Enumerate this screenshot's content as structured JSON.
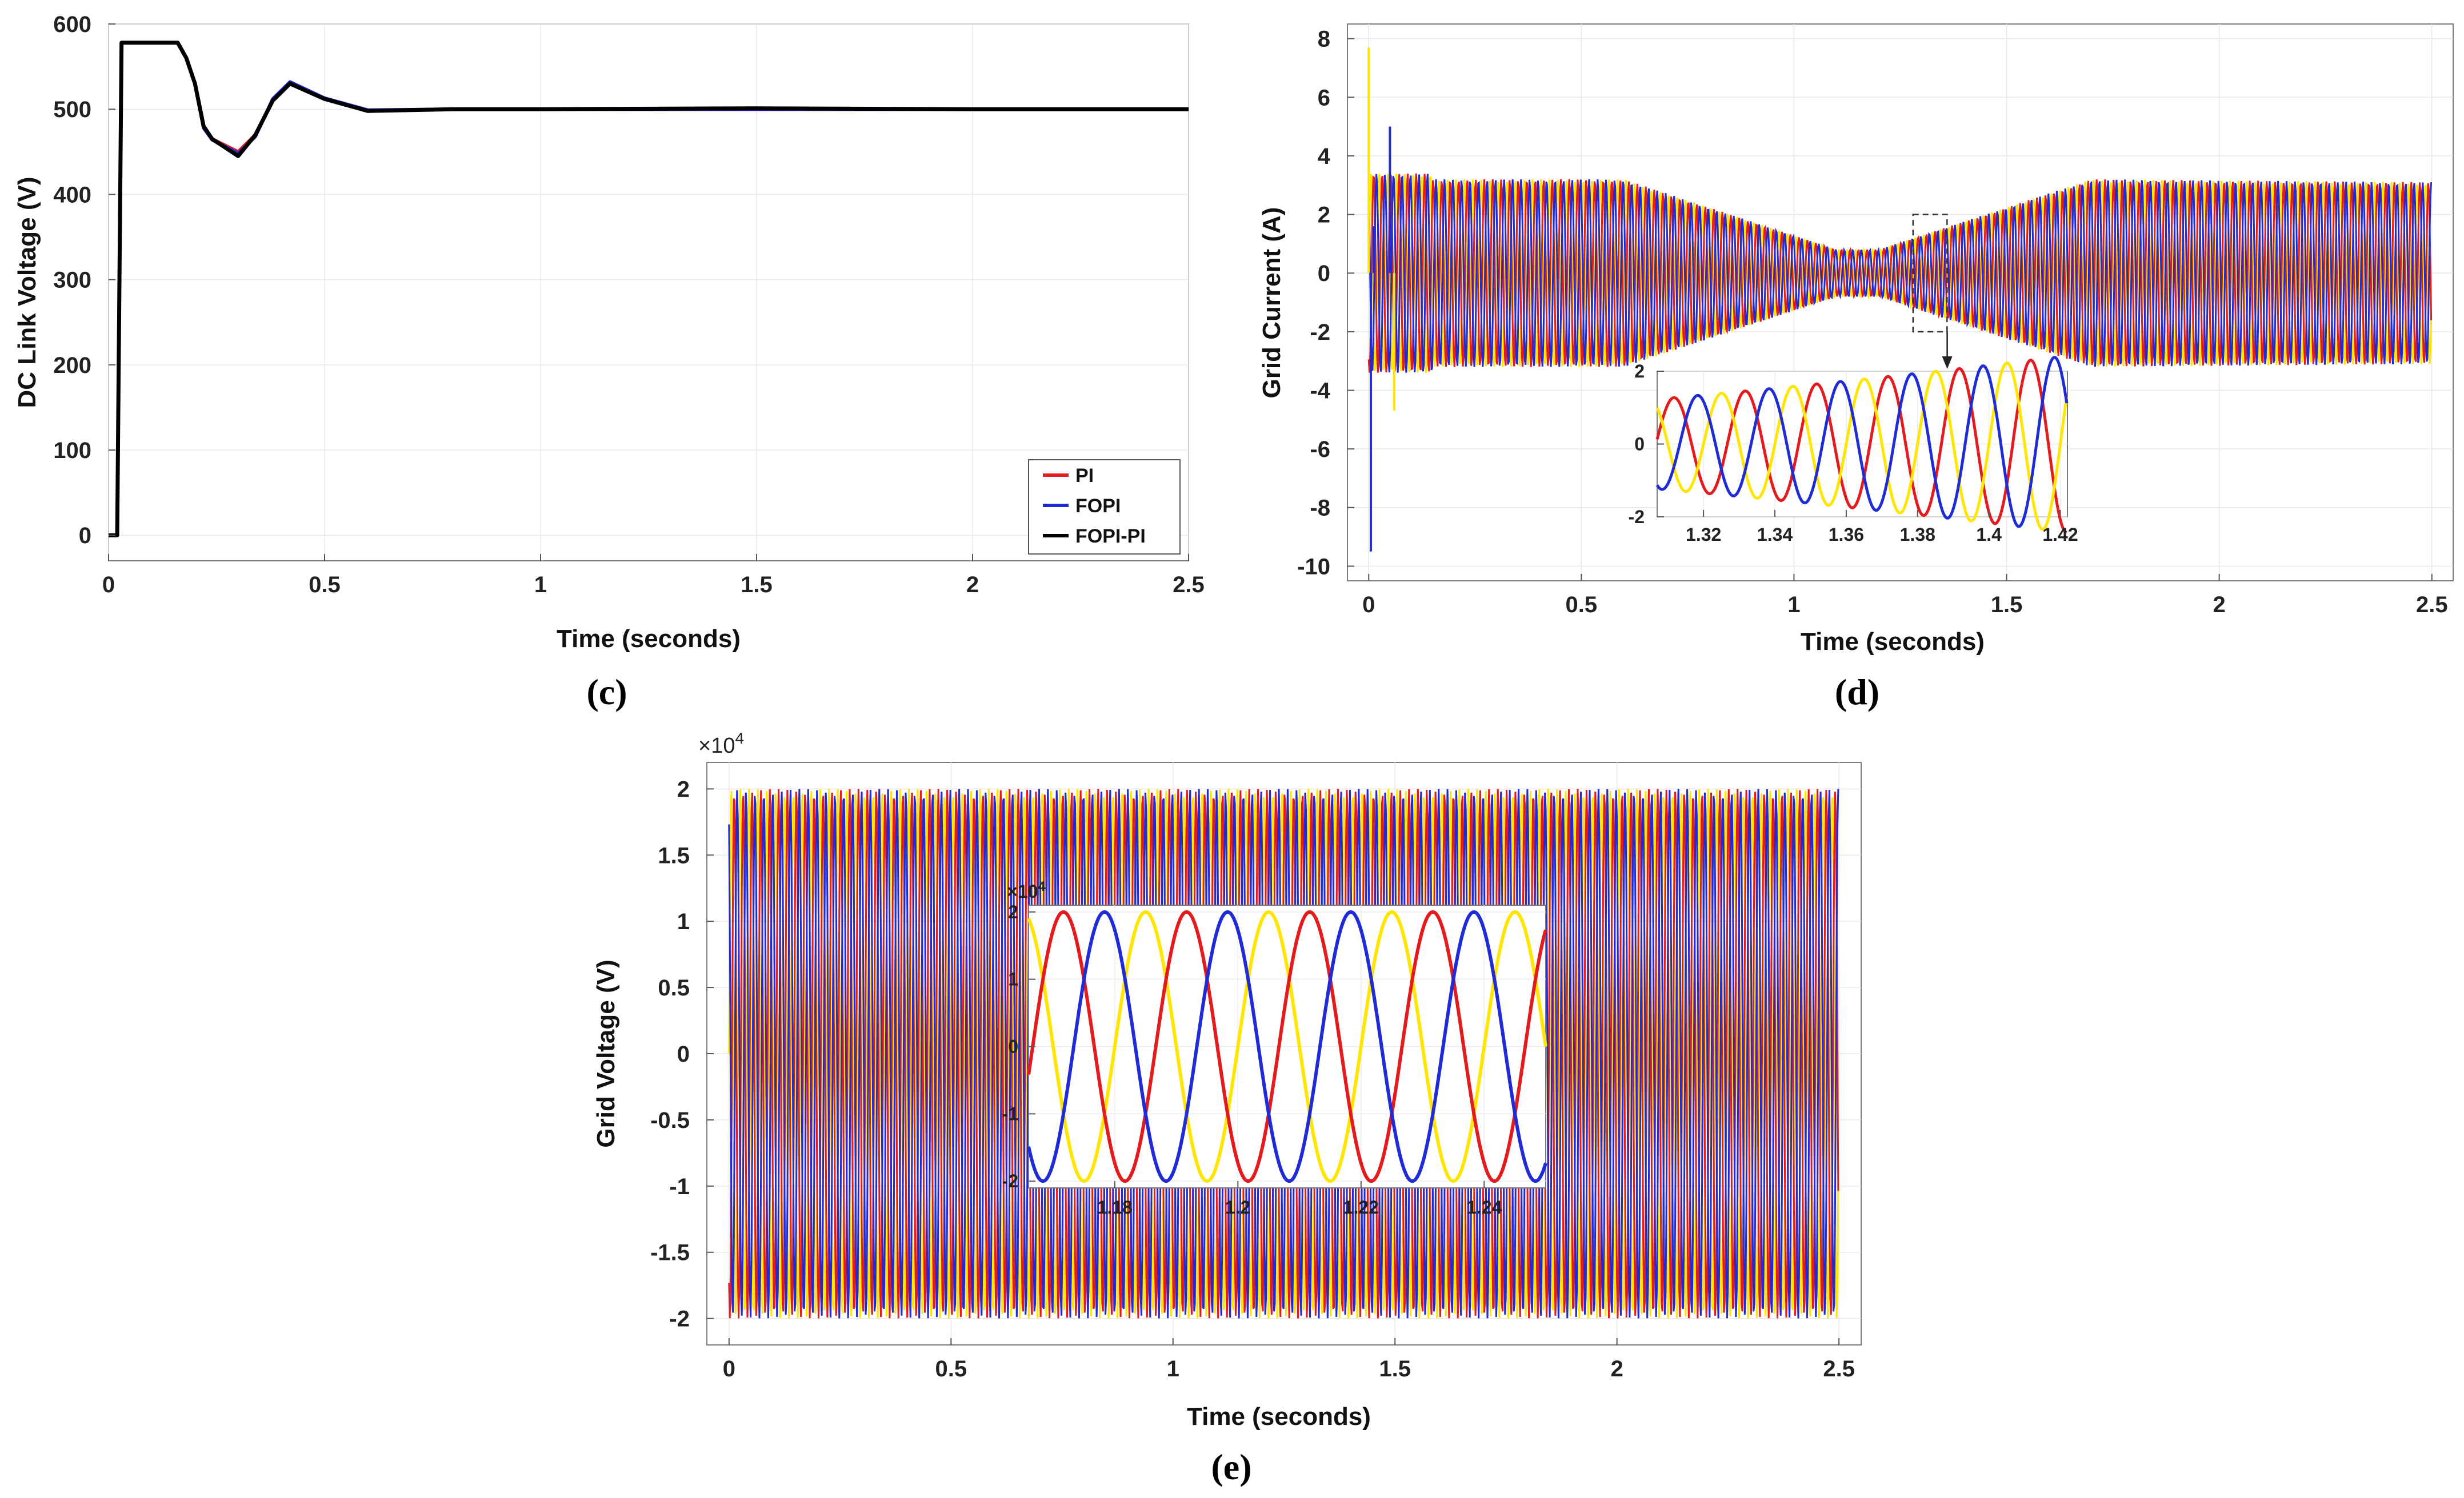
{
  "chart_data": [
    {
      "type": "line",
      "panel_label": "(c)",
      "xlabel": "Time (seconds)",
      "ylabel": "DC Link Voltage (V)",
      "xlim": [
        0,
        2.5
      ],
      "ylim": [
        -30,
        600
      ],
      "xticks": [
        0,
        0.5,
        1,
        1.5,
        2,
        2.5
      ],
      "xtick_labels": [
        "0",
        "0.5",
        "1",
        "1.5",
        "2",
        "2.5"
      ],
      "yticks": [
        0,
        100,
        200,
        300,
        400,
        500,
        600
      ],
      "ytick_labels": [
        "0",
        "100",
        "200",
        "300",
        "400",
        "500",
        "600"
      ],
      "grid": true,
      "legend_position": "bottom-right",
      "series": [
        {
          "name": "PI",
          "color": "#e41a1c",
          "x": [
            0,
            0.02,
            0.03,
            0.06,
            0.16,
            0.18,
            0.2,
            0.22,
            0.24,
            0.3,
            0.34,
            0.38,
            0.42,
            0.5,
            0.6,
            0.8,
            1.0,
            1.5,
            2.0,
            2.5
          ],
          "y": [
            0,
            0,
            578,
            578,
            578,
            560,
            530,
            480,
            465,
            450,
            470,
            510,
            530,
            512,
            498,
            500,
            500,
            500,
            500,
            500
          ]
        },
        {
          "name": "FOPI",
          "color": "#1f2bd6",
          "x": [
            0,
            0.02,
            0.03,
            0.06,
            0.16,
            0.18,
            0.2,
            0.22,
            0.24,
            0.3,
            0.34,
            0.38,
            0.42,
            0.5,
            0.6,
            0.8,
            1.0,
            1.5,
            2.0,
            2.5
          ],
          "y": [
            0,
            0,
            578,
            578,
            578,
            560,
            530,
            478,
            464,
            448,
            468,
            512,
            532,
            513,
            499,
            500,
            500,
            500,
            500,
            500
          ]
        },
        {
          "name": "FOPI-PI",
          "color": "#000000",
          "x": [
            0,
            0.02,
            0.03,
            0.06,
            0.16,
            0.18,
            0.2,
            0.22,
            0.24,
            0.3,
            0.34,
            0.38,
            0.42,
            0.5,
            0.6,
            0.8,
            1.0,
            1.5,
            2.0,
            2.5
          ],
          "y": [
            0,
            0,
            578,
            578,
            578,
            560,
            530,
            480,
            465,
            445,
            470,
            510,
            530,
            512,
            498,
            500,
            500,
            501,
            500,
            500
          ]
        }
      ]
    },
    {
      "type": "line",
      "panel_label": "(d)",
      "xlabel": "Time (seconds)",
      "ylabel": "Grid Current (A)",
      "xlim": [
        -0.05,
        2.55
      ],
      "ylim": [
        -10.5,
        8.5
      ],
      "xticks": [
        0,
        0.5,
        1,
        1.5,
        2,
        2.5
      ],
      "xtick_labels": [
        "0",
        "0.5",
        "1",
        "1.5",
        "2",
        "2.5"
      ],
      "yticks": [
        -10,
        -8,
        -6,
        -4,
        -2,
        0,
        2,
        4,
        6,
        8
      ],
      "ytick_labels": [
        "-10",
        "-8",
        "-6",
        "-4",
        "-2",
        "0",
        "2",
        "4",
        "6",
        "8"
      ],
      "grid": true,
      "three_phase_frequency_hz": 50,
      "amplitude_envelope": {
        "t": [
          0.15,
          0.6,
          1.1,
          1.2,
          1.7,
          2.5
        ],
        "amp": [
          3.2,
          3.2,
          0.8,
          0.8,
          3.2,
          3.1
        ]
      },
      "startup_spikes": {
        "t": [
          0,
          0.005,
          0.012,
          0.05,
          0.06
        ],
        "y": [
          7.7,
          -9.5,
          1.6,
          5.0,
          -4.7
        ]
      },
      "phase_colors": [
        "#ffe600",
        "#e41a1c",
        "#1f2bd6"
      ],
      "inset": {
        "xlim": [
          1.307,
          1.422
        ],
        "ylim": [
          -2,
          2
        ],
        "xticks": [
          1.32,
          1.34,
          1.36,
          1.38,
          1.4,
          1.42
        ],
        "xtick_labels": [
          "1.32",
          "1.34",
          "1.36",
          "1.38",
          "1.4",
          "1.42"
        ],
        "yticks": [
          -2,
          0,
          2
        ],
        "ytick_labels": [
          "-2",
          "0",
          "2"
        ],
        "zoom_box": {
          "x": [
            1.28,
            1.36
          ],
          "y": [
            -2.0,
            2.0
          ]
        }
      }
    },
    {
      "type": "line",
      "panel_label": "(e)",
      "xlabel": "Time (seconds)",
      "ylabel": "Grid Voltage (V)",
      "exponent_label": "×10",
      "exponent_power": "4",
      "xlim": [
        -0.05,
        2.55
      ],
      "ylim": [
        -2.2,
        2.2
      ],
      "xticks": [
        0,
        0.5,
        1,
        1.5,
        2,
        2.5
      ],
      "xtick_labels": [
        "0",
        "0.5",
        "1",
        "1.5",
        "2",
        "2.5"
      ],
      "yticks": [
        -2,
        -1.5,
        -1,
        -0.5,
        0,
        0.5,
        1,
        1.5,
        2
      ],
      "ytick_labels": [
        "-2",
        "-1.5",
        "-1",
        "-0.5",
        "0",
        "0.5",
        "1",
        "1.5",
        "2"
      ],
      "grid": true,
      "three_phase_frequency_hz": 50,
      "amplitude": 2.0,
      "phase_colors": [
        "#ffe600",
        "#e41a1c",
        "#1f2bd6"
      ],
      "inset": {
        "exponent_label": "×10",
        "exponent_power": "4",
        "xlim": [
          1.166,
          1.25
        ],
        "ylim": [
          -2.1,
          2.1
        ],
        "xticks": [
          1.18,
          1.2,
          1.22,
          1.24
        ],
        "xtick_labels": [
          "1.18",
          "1.2",
          "1.22",
          "1.24"
        ],
        "yticks": [
          -2,
          -1,
          0,
          1,
          2
        ],
        "ytick_labels": [
          "-2",
          "-1",
          "0",
          "1",
          "2"
        ]
      }
    }
  ]
}
